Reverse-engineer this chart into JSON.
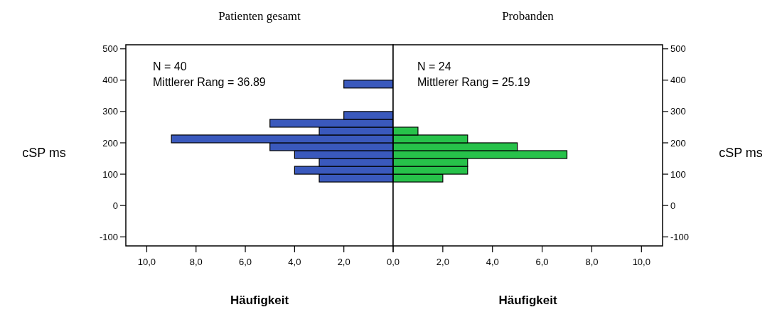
{
  "chart_data": [
    {
      "type": "histogram",
      "orientation": "horizontal",
      "title": "Patienten gesamt",
      "xlabel": "Häufigkeit",
      "ylabel": "cSP ms",
      "color": "#3a59bd",
      "bins": [
        75,
        100,
        125,
        150,
        175,
        200,
        225,
        250,
        275,
        300,
        325,
        350,
        375,
        400
      ],
      "values": [
        3,
        4,
        3,
        4,
        5,
        9,
        3,
        5,
        2,
        0,
        0,
        0,
        2
      ],
      "xlim": [
        10.85,
        0
      ],
      "xticks": [
        {
          "value": 10,
          "label": "10,0"
        },
        {
          "value": 8,
          "label": "8,0"
        },
        {
          "value": 6,
          "label": "6,0"
        },
        {
          "value": 4,
          "label": "4,0"
        },
        {
          "value": 2,
          "label": "2,0"
        },
        {
          "value": 0,
          "label": null
        }
      ],
      "ylim": [
        -129,
        513
      ],
      "yticks": [
        -100,
        0,
        100,
        200,
        300,
        400,
        500
      ],
      "annotations": [
        "N = 40",
        "Mittlerer Rang = 36.89"
      ]
    },
    {
      "type": "histogram",
      "orientation": "horizontal",
      "title": "Probanden",
      "xlabel": "Häufigkeit",
      "ylabel": "cSP ms",
      "color": "#27c24a",
      "bins": [
        75,
        100,
        125,
        150,
        175,
        200,
        225,
        250,
        275,
        300,
        325,
        350,
        375,
        400
      ],
      "values": [
        2,
        3,
        3,
        7,
        5,
        3,
        1,
        0,
        0,
        0,
        0,
        0,
        0
      ],
      "xlim": [
        0,
        10.85
      ],
      "xticks": [
        {
          "value": 0,
          "label": "0,0"
        },
        {
          "value": 2,
          "label": "2,0"
        },
        {
          "value": 4,
          "label": "4,0"
        },
        {
          "value": 6,
          "label": "6,0"
        },
        {
          "value": 8,
          "label": "8,0"
        },
        {
          "value": 10,
          "label": "10,0"
        }
      ],
      "ylim": [
        -129,
        513
      ],
      "yticks": [
        -100,
        0,
        100,
        200,
        300,
        400,
        500
      ],
      "annotations": [
        "N = 24",
        "Mittlerer Rang = 25.19"
      ]
    }
  ]
}
